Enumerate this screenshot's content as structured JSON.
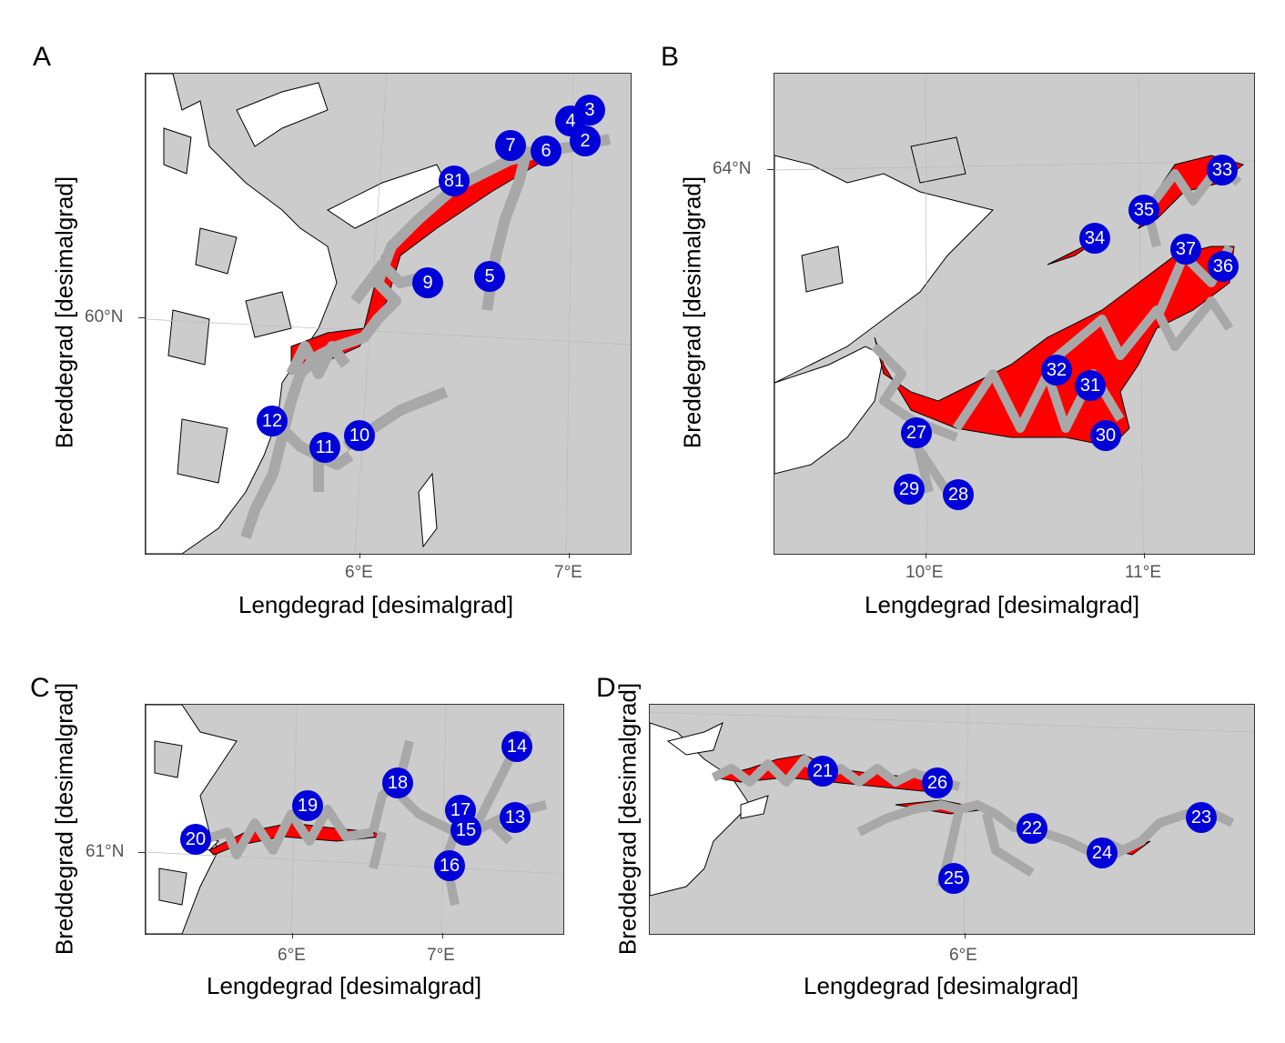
{
  "panels": {
    "a": {
      "letter": "A",
      "xlabel": "Lengdegrad [desimalgrad]",
      "ylabel": "Breddegrad  [desimalgrad]",
      "xticks": [
        "6°E",
        "7°E"
      ],
      "yticks": [
        "60°N"
      ],
      "markers": [
        "3",
        "4",
        "2",
        "7",
        "6",
        "81",
        "9",
        "5",
        "12",
        "10",
        "11"
      ]
    },
    "b": {
      "letter": "B",
      "xlabel": "Lengdegrad [desimalgrad]",
      "ylabel": "Breddegrad  [desimalgrad]",
      "xticks": [
        "10°E",
        "11°E"
      ],
      "yticks": [
        "64°N"
      ],
      "markers": [
        "33",
        "35",
        "34",
        "37",
        "36",
        "32",
        "31",
        "27",
        "30",
        "29",
        "28"
      ]
    },
    "c": {
      "letter": "C",
      "xlabel": "Lengdegrad [desimalgrad]",
      "ylabel": "Breddegrad  [desimalgrad]",
      "xticks": [
        "6°E",
        "7°E"
      ],
      "yticks": [
        "61°N"
      ],
      "markers": [
        "14",
        "18",
        "19",
        "17",
        "13",
        "15",
        "20",
        "16"
      ]
    },
    "d": {
      "letter": "D",
      "xlabel": "Lengdegrad [desimalgrad]",
      "ylabel": "Breddegrad  [desimalgrad]",
      "xticks": [
        "6°E"
      ],
      "yticks": [],
      "markers": [
        "21",
        "26",
        "23",
        "22",
        "24",
        "25"
      ]
    }
  },
  "colors": {
    "sea": "#ffffff",
    "land": "#cccccc",
    "survey_area": "#ff0000",
    "transects": "#a8a8a8",
    "marker": "#0000d8",
    "marker_text": "#ffffff"
  }
}
